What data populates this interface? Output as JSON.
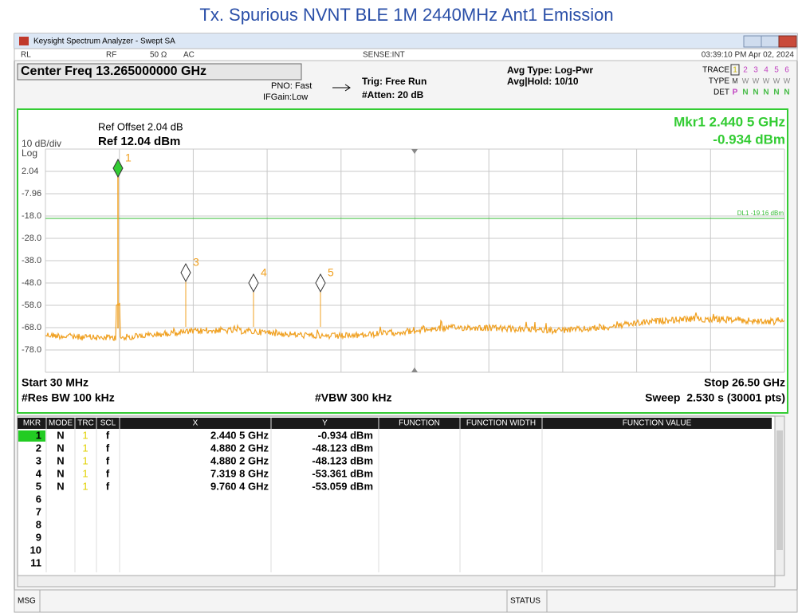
{
  "page_title": "Tx. Spurious NVNT BLE 1M 2440MHz Ant1 Emission",
  "window": {
    "title": "Keysight Spectrum Analyzer - Swept SA",
    "status_bar": [
      "RL",
      "RF",
      "50 Ω",
      "AC",
      "SENSE:INT",
      "03:39:10 PM Apr 02, 2024"
    ]
  },
  "settings": {
    "center_freq": "Center Freq 13.265000000 GHz",
    "pno": "PNO: Fast",
    "ifgain": "IFGain:Low",
    "trig": "Trig: Free Run",
    "atten": "#Atten: 20 dB",
    "avg_type": "Avg Type: Log-Pwr",
    "avg_hold": "Avg|Hold: 10/10",
    "trace_label": "TRACE",
    "trace_nums": [
      "1",
      "2",
      "3",
      "4",
      "5",
      "6"
    ],
    "type_label": "TYPE",
    "type_values": [
      "M",
      "W",
      "W",
      "W",
      "W",
      "W"
    ],
    "det_label": "DET",
    "det_values": [
      "P",
      "N",
      "N",
      "N",
      "N",
      "N"
    ]
  },
  "plot": {
    "ref_offset": "Ref Offset 2.04 dB",
    "ref_level": "Ref 12.04 dBm",
    "scale": "10 dB/div",
    "scale_type": "Log",
    "marker_freq": "Mkr1 2.440 5 GHz",
    "marker_amp": "-0.934 dBm",
    "display_line": "DL1 -19.16 dBm",
    "y_labels": [
      "2.04",
      "-7.96",
      "-18.0",
      "-28.0",
      "-38.0",
      "-48.0",
      "-58.0",
      "-68.0",
      "-78.0"
    ],
    "marker_labels": [
      "1",
      "3",
      "4",
      "5"
    ],
    "start": "Start 30 MHz",
    "stop": "Stop 26.50 GHz",
    "rbw": "#Res BW 100 kHz",
    "vbw": "#VBW 300 kHz",
    "sweep": "Sweep  2.530 s (30001 pts)"
  },
  "table": {
    "headers": [
      "MKR",
      "MODE",
      "TRC",
      "SCL",
      "X",
      "Y",
      "FUNCTION",
      "FUNCTION WIDTH",
      "FUNCTION VALUE"
    ],
    "rows": [
      [
        "1",
        "N",
        "1",
        "f",
        "2.440 5 GHz",
        "-0.934 dBm"
      ],
      [
        "2",
        "N",
        "1",
        "f",
        "4.880 2 GHz",
        "-48.123 dBm"
      ],
      [
        "3",
        "N",
        "1",
        "f",
        "4.880 2 GHz",
        "-48.123 dBm"
      ],
      [
        "4",
        "N",
        "1",
        "f",
        "7.319 8 GHz",
        "-53.361 dBm"
      ],
      [
        "5",
        "N",
        "1",
        "f",
        "9.760 4 GHz",
        "-53.059 dBm"
      ],
      [
        "6"
      ],
      [
        "7"
      ],
      [
        "8"
      ],
      [
        "9"
      ],
      [
        "10"
      ],
      [
        "11"
      ]
    ]
  },
  "msg": "MSG",
  "status": "STATUS"
}
